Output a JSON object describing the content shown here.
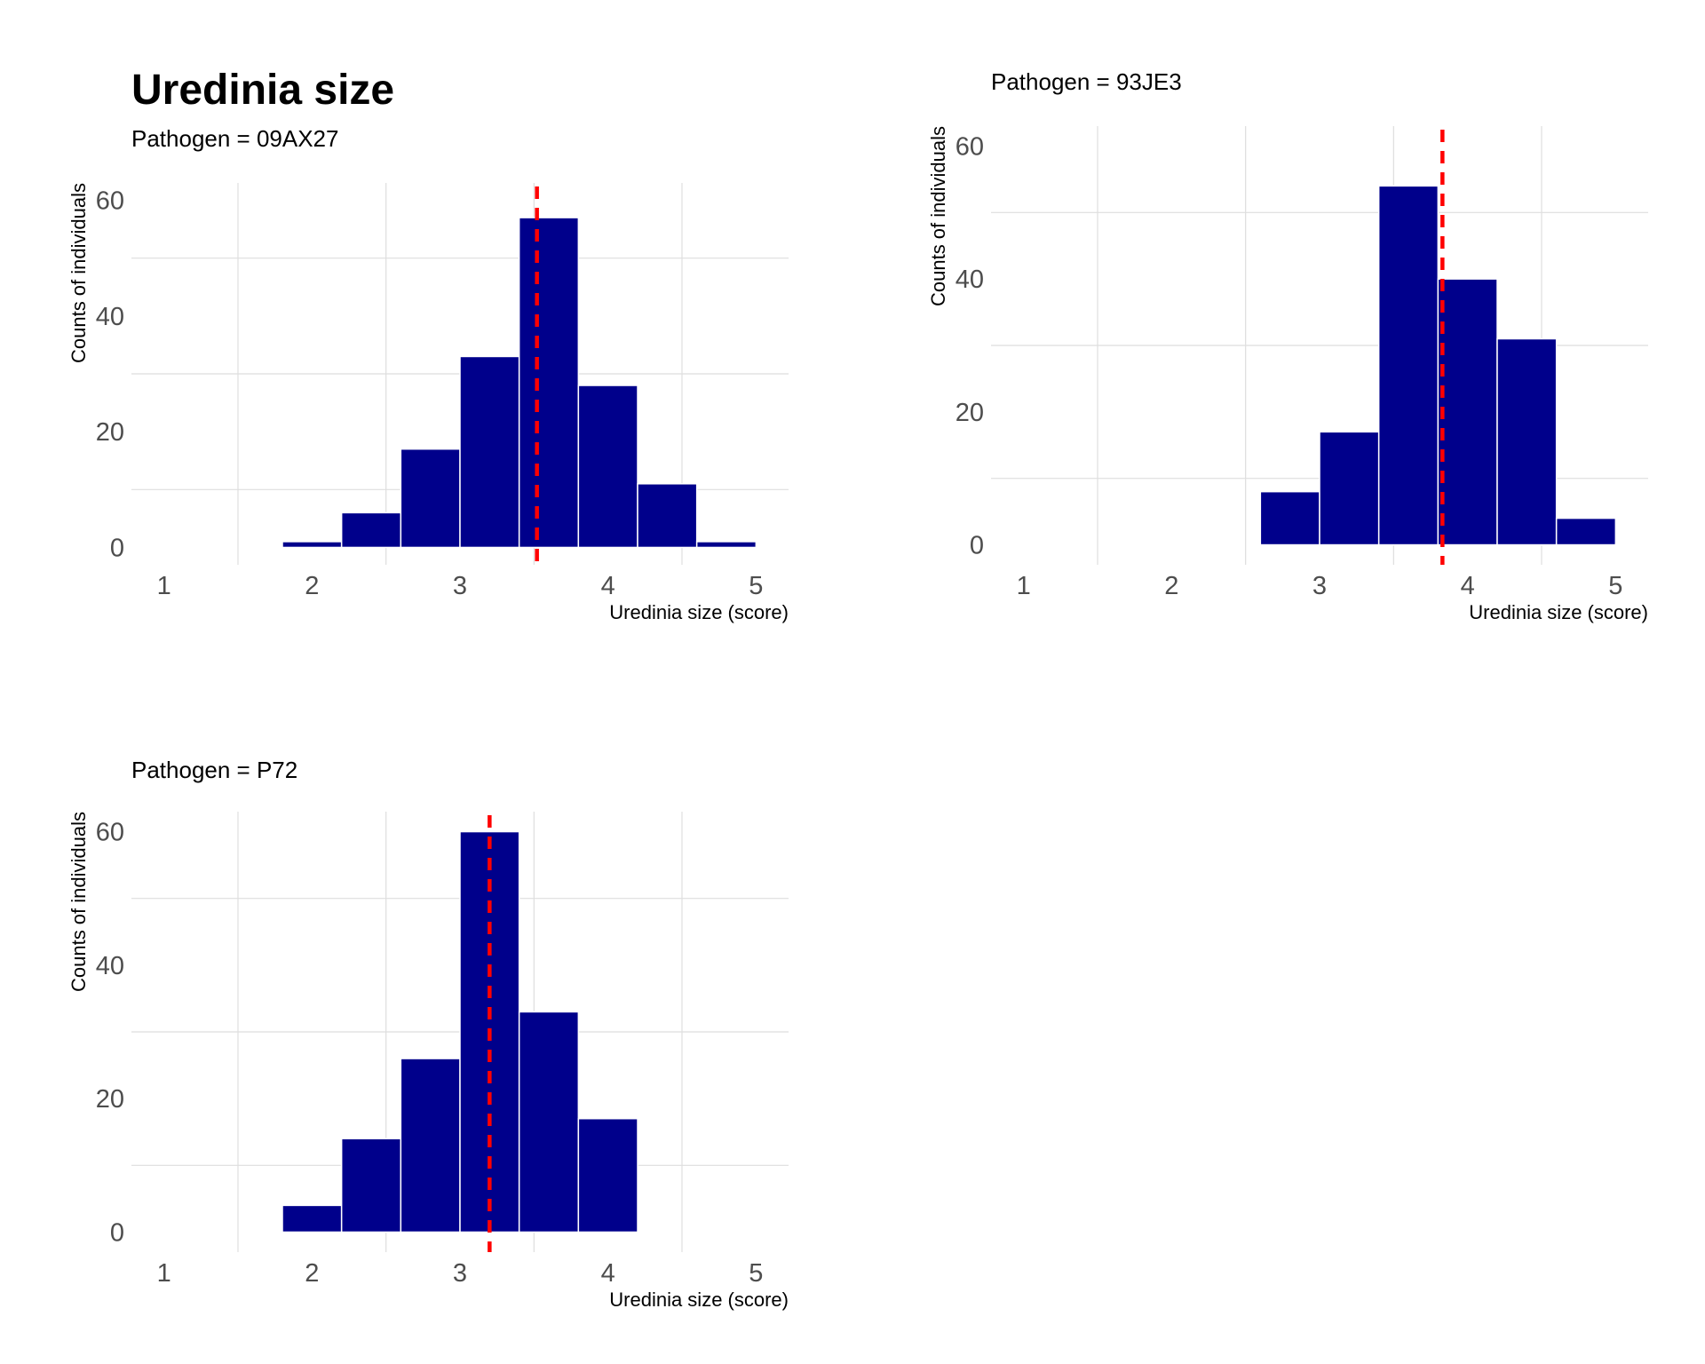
{
  "title": "Uredinia size",
  "colors": {
    "bar_fill": "#00008b",
    "bar_outline": "#ffffff",
    "mean_line": "#ff0000",
    "grid": "#d9d9d9",
    "tick_text": "#4d4d4d"
  },
  "chart_data": [
    {
      "type": "bar",
      "subtitle": "Pathogen = 09AX27",
      "xlabel": "Uredinia size (score)",
      "ylabel": "Counts of individuals",
      "xlim": [
        0.78,
        5.22
      ],
      "ylim": [
        -3,
        63
      ],
      "x_ticks": [
        "1",
        "2",
        "3",
        "4",
        "5"
      ],
      "y_ticks": [
        "0",
        "20",
        "40",
        "60"
      ],
      "bin_width": 0.4,
      "bins": [
        {
          "x": 2.0,
          "count": 1
        },
        {
          "x": 2.4,
          "count": 6
        },
        {
          "x": 2.8,
          "count": 17
        },
        {
          "x": 3.2,
          "count": 33
        },
        {
          "x": 3.6,
          "count": 57
        },
        {
          "x": 4.0,
          "count": 28
        },
        {
          "x": 4.4,
          "count": 11
        },
        {
          "x": 4.8,
          "count": 1
        }
      ],
      "mean": 3.52,
      "grid": true
    },
    {
      "type": "bar",
      "subtitle": "Pathogen = 93JE3",
      "xlabel": "Uredinia size (score)",
      "ylabel": "Counts of individuals",
      "xlim": [
        0.78,
        5.22
      ],
      "ylim": [
        -3,
        63
      ],
      "x_ticks": [
        "1",
        "2",
        "3",
        "4",
        "5"
      ],
      "y_ticks": [
        "0",
        "20",
        "40",
        "60"
      ],
      "bin_width": 0.4,
      "bins": [
        {
          "x": 2.8,
          "count": 8
        },
        {
          "x": 3.2,
          "count": 17
        },
        {
          "x": 3.6,
          "count": 54
        },
        {
          "x": 4.0,
          "count": 40
        },
        {
          "x": 4.4,
          "count": 31
        },
        {
          "x": 4.8,
          "count": 4
        }
      ],
      "mean": 3.83,
      "grid": true
    },
    {
      "type": "bar",
      "subtitle": "Pathogen = P72",
      "xlabel": "Uredinia size (score)",
      "ylabel": "Counts of individuals",
      "xlim": [
        0.78,
        5.22
      ],
      "ylim": [
        -3,
        63
      ],
      "x_ticks": [
        "1",
        "2",
        "3",
        "4",
        "5"
      ],
      "y_ticks": [
        "0",
        "20",
        "40",
        "60"
      ],
      "bin_width": 0.4,
      "bins": [
        {
          "x": 2.0,
          "count": 4
        },
        {
          "x": 2.4,
          "count": 14
        },
        {
          "x": 2.8,
          "count": 26
        },
        {
          "x": 3.2,
          "count": 60
        },
        {
          "x": 3.6,
          "count": 33
        },
        {
          "x": 4.0,
          "count": 17
        }
      ],
      "mean": 3.2,
      "grid": true
    }
  ]
}
